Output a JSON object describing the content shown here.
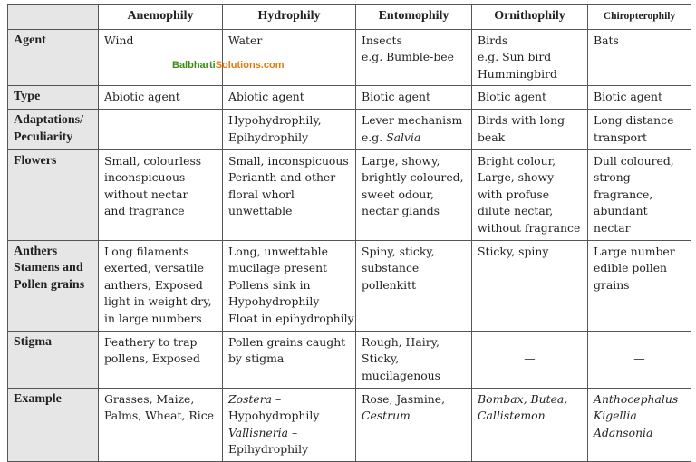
{
  "watermark": {
    "part1": "Balbharti",
    "part2": "Solutions.com"
  },
  "columns": [
    "Anemophily",
    "Hydrophily",
    "Entomophily",
    "Ornithophily",
    "Chiropterophily"
  ],
  "rows": [
    {
      "label": [
        "Agent"
      ],
      "cells": [
        [
          [
            "Wind"
          ]
        ],
        [
          [
            "Water"
          ]
        ],
        [
          [
            "Insects"
          ],
          [
            "e.g. Bumble-bee"
          ]
        ],
        [
          [
            "Birds"
          ],
          [
            "e.g. Sun bird"
          ],
          [
            "Hummingbird"
          ]
        ],
        [
          [
            "Bats"
          ]
        ]
      ]
    },
    {
      "label": [
        "Type"
      ],
      "cells": [
        [
          [
            "Abiotic agent"
          ]
        ],
        [
          [
            "Abiotic agent"
          ]
        ],
        [
          [
            "Biotic agent"
          ]
        ],
        [
          [
            "Biotic agent"
          ]
        ],
        [
          [
            "Biotic agent"
          ]
        ]
      ]
    },
    {
      "label": [
        "Adaptations/",
        "Peculiarity"
      ],
      "cells": [
        [],
        [
          [
            "Hypohydrophily,"
          ],
          [
            "Epihydrophily"
          ]
        ],
        [
          [
            "Lever mechanism"
          ],
          [
            "e.g. ",
            {
              "text": "Salvia",
              "italic": true
            }
          ]
        ],
        [
          [
            "Birds with long"
          ],
          [
            "beak"
          ]
        ],
        [
          [
            "Long distance"
          ],
          [
            "transport"
          ]
        ]
      ]
    },
    {
      "label": [
        "Flowers"
      ],
      "cells": [
        [
          [
            "Small, colourless"
          ],
          [
            "inconspicuous"
          ],
          [
            "without nectar"
          ],
          [
            "and fragrance"
          ]
        ],
        [
          [
            "Small, inconspicuous"
          ],
          [
            "Perianth and other"
          ],
          [
            "floral whorl"
          ],
          [
            "unwettable"
          ]
        ],
        [
          [
            "Large, showy,"
          ],
          [
            "brightly coloured,"
          ],
          [
            "sweet odour,"
          ],
          [
            "nectar glands"
          ]
        ],
        [
          [
            "Bright colour,"
          ],
          [
            "Large, showy"
          ],
          [
            "with profuse"
          ],
          [
            "dilute nectar,"
          ],
          [
            "without fragrance"
          ]
        ],
        [
          [
            "Dull coloured,"
          ],
          [
            "strong"
          ],
          [
            "fragrance,"
          ],
          [
            "abundant"
          ],
          [
            "nectar"
          ]
        ]
      ]
    },
    {
      "label": [
        "Anthers",
        "Stamens and",
        "Pollen grains"
      ],
      "cells": [
        [
          [
            "Long filaments"
          ],
          [
            "exerted, versatile"
          ],
          [
            "anthers, Exposed"
          ],
          [
            "light in weight dry,"
          ],
          [
            "in large numbers"
          ]
        ],
        [
          [
            "Long, unwettable"
          ],
          [
            "mucilage present"
          ],
          [
            "Pollens sink in"
          ],
          [
            "Hypohydrophily"
          ],
          [
            "Float in epihydrophily"
          ]
        ],
        [
          [
            "Spiny, sticky,"
          ],
          [
            "substance"
          ],
          [
            "pollenkitt"
          ]
        ],
        [
          [
            "Sticky, spiny"
          ]
        ],
        [
          [
            "Large number"
          ],
          [
            "edible pollen"
          ],
          [
            "grains"
          ]
        ]
      ]
    },
    {
      "label": [
        "Stigma"
      ],
      "cells": [
        [
          [
            "Feathery to trap"
          ],
          [
            "pollens, Exposed"
          ]
        ],
        [
          [
            "Pollen grains caught"
          ],
          [
            "by stigma"
          ]
        ],
        [
          [
            "Rough, Hairy,"
          ],
          [
            "Sticky,"
          ],
          [
            "mucilagenous"
          ]
        ],
        [
          [
            "—"
          ]
        ],
        [
          [
            "—"
          ]
        ]
      ]
    },
    {
      "label": [
        "Example"
      ],
      "cells": [
        [
          [
            "Grasses, Maize,"
          ],
          [
            "Palms, Wheat, Rice"
          ]
        ],
        [
          [
            {
              "text": "Zostera",
              "italic": true
            },
            " –"
          ],
          [
            "Hypohydrophily"
          ],
          [
            {
              "text": "Vallisneria",
              "italic": true
            },
            " –"
          ],
          [
            "Epihydrophily"
          ]
        ],
        [
          [
            "Rose, Jasmine,"
          ],
          [
            {
              "text": "Cestrum",
              "italic": true
            }
          ]
        ],
        [
          [
            {
              "text": "Bombax, Butea,",
              "italic": true
            }
          ],
          [
            {
              "text": "Callistemon",
              "italic": true
            }
          ]
        ],
        [
          [
            {
              "text": "Anthocephalus",
              "italic": true
            }
          ],
          [
            {
              "text": "Kigellia",
              "italic": true
            }
          ],
          [
            {
              "text": "Adansonia",
              "italic": true
            }
          ]
        ]
      ]
    }
  ]
}
